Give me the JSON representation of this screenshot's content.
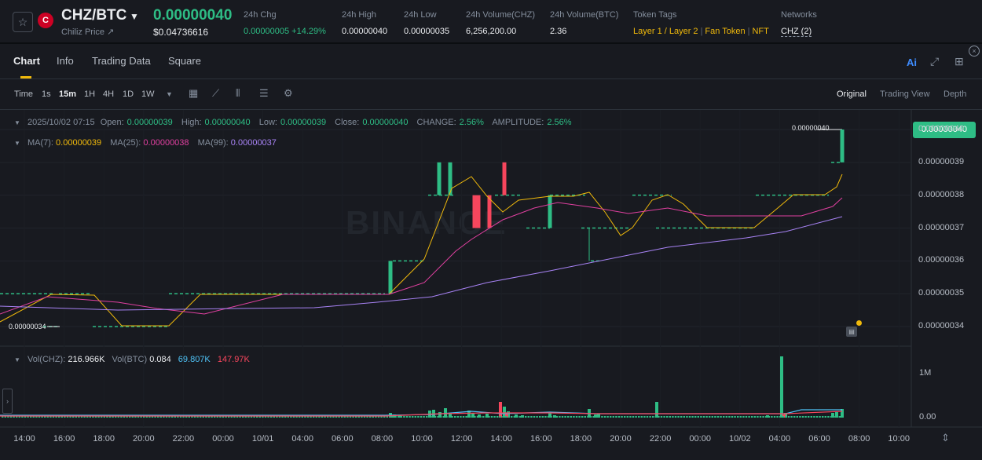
{
  "header": {
    "pair": "CHZ/BTC",
    "coin_price_link": "Chiliz Price ↗",
    "last_price": "0.00000040",
    "usd_price": "$0.04736616",
    "stats": [
      {
        "label": "24h Chg",
        "value": "0.00000005 +14.29%",
        "color": "#2ebd85"
      },
      {
        "label": "24h High",
        "value": "0.00000040"
      },
      {
        "label": "24h Low",
        "value": "0.00000035"
      },
      {
        "label": "24h Volume(CHZ)",
        "value": "6,256,200.00"
      },
      {
        "label": "24h Volume(BTC)",
        "value": "2.36"
      }
    ],
    "token_tags_label": "Token Tags",
    "token_tags": [
      "Layer 1 / Layer 2",
      "Fan Token",
      "NFT"
    ],
    "networks_label": "Networks",
    "networks_value": "CHZ (2)"
  },
  "tabs": [
    "Chart",
    "Info",
    "Trading Data",
    "Square"
  ],
  "toolbar": {
    "timeframes": [
      "Time",
      "1s",
      "15m",
      "1H",
      "4H",
      "1D",
      "1W"
    ],
    "active_timeframe": "15m",
    "views": [
      "Original",
      "Trading View",
      "Depth"
    ],
    "active_view": "Original"
  },
  "ohlc": {
    "date": "2025/10/02 07:15",
    "open_label": "Open:",
    "open": "0.00000039",
    "high_label": "High:",
    "high": "0.00000040",
    "low_label": "Low:",
    "low": "0.00000039",
    "close_label": "Close:",
    "close": "0.00000040",
    "change_label": "CHANGE:",
    "change": "2.56%",
    "amplitude_label": "AMPLITUDE:",
    "amplitude": "2.56%"
  },
  "ma": {
    "ma7_label": "MA(7):",
    "ma7": "0.00000039",
    "ma25_label": "MA(25):",
    "ma25": "0.00000038",
    "ma99_label": "MA(99):",
    "ma99": "0.00000037"
  },
  "vol": {
    "vol_chz_label": "Vol(CHZ):",
    "vol_chz": "216.966K",
    "vol_btc_label": "Vol(BTC)",
    "vol_btc": "0.084",
    "vol_ma1": "69.807K",
    "vol_ma2": "147.97K"
  },
  "price_tag": "0.00000040",
  "high_marker": "0.00000040",
  "low_marker": "0.00000034",
  "watermark": "BINANCE",
  "colors": {
    "up": "#2ebd85",
    "down": "#f6465d",
    "ma7": "#f0b90b",
    "ma25": "#e040a0",
    "ma99": "#a883f5",
    "accent": "#f0b90b"
  },
  "chart_data": {
    "type": "candlestick",
    "y_ticks": [
      "0.00000040",
      "0.00000039",
      "0.00000038",
      "0.00000037",
      "0.00000036",
      "0.00000035",
      "0.00000034"
    ],
    "y_range": [
      3.4e-07,
      4e-07
    ],
    "x_ticks": [
      "14:00",
      "16:00",
      "18:00",
      "20:00",
      "22:00",
      "00:00",
      "10/01",
      "04:00",
      "06:00",
      "08:00",
      "10:00",
      "12:00",
      "14:00",
      "16:00",
      "18:00",
      "20:00",
      "22:00",
      "00:00",
      "10/02",
      "04:00",
      "06:00",
      "08:00",
      "10:00"
    ],
    "candles": [
      {
        "t": "08:30",
        "o": 3.5e-07,
        "c": 3.6e-07,
        "h": 3.6e-07,
        "l": 3.5e-07
      },
      {
        "t": "11:00",
        "o": 3.8e-07,
        "c": 3.9e-07,
        "h": 3.9e-07,
        "l": 3.8e-07
      },
      {
        "t": "11:30",
        "o": 3.8e-07,
        "c": 3.9e-07,
        "h": 3.9e-07,
        "l": 3.8e-07
      },
      {
        "t": "12:30",
        "o": 3.8e-07,
        "c": 3.7e-07,
        "h": 3.8e-07,
        "l": 3.7e-07
      },
      {
        "t": "12:45",
        "o": 3.8e-07,
        "c": 3.7e-07,
        "h": 3.8e-07,
        "l": 3.7e-07
      },
      {
        "t": "13:15",
        "o": 3.8e-07,
        "c": 3.7e-07,
        "h": 3.8e-07,
        "l": 3.7e-07
      },
      {
        "t": "14:15",
        "o": 3.9e-07,
        "c": 3.8e-07,
        "h": 3.9e-07,
        "l": 3.8e-07
      },
      {
        "t": "16:30",
        "o": 3.7e-07,
        "c": 3.8e-07,
        "h": 3.8e-07,
        "l": 3.7e-07
      },
      {
        "t": "07:15",
        "o": 3.9e-07,
        "c": 4e-07,
        "h": 4e-07,
        "l": 3.9e-07
      }
    ],
    "volume_y_ticks": [
      "1M",
      "0.00"
    ]
  }
}
